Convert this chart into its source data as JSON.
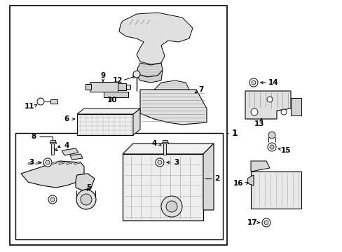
{
  "bg_color": "#ffffff",
  "lc": "#000000",
  "gray_fill": "#e8e8e8",
  "dark_gray": "#c0c0c0",
  "figsize": [
    4.89,
    3.6
  ],
  "dpi": 100
}
